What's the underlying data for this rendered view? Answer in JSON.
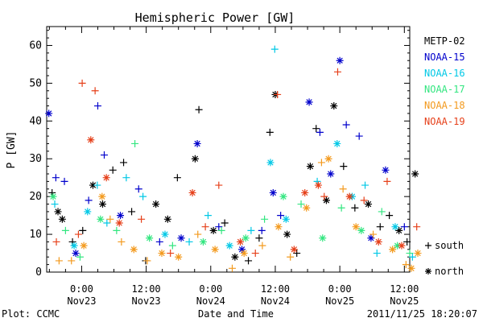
{
  "chart_data": {
    "type": "scatter",
    "title": "Hemispheric Power [GW]",
    "ylabel": "P [GW]",
    "xlabel": "Date and Time",
    "ylim": [
      0,
      65
    ],
    "yticks": [
      0,
      10,
      20,
      30,
      40,
      50,
      60
    ],
    "xlim": [
      -6.5,
      61
    ],
    "grid": false,
    "legend_placement": "right",
    "x_unit": "hours since 2011-11-23 00:00 UT",
    "xticks": [
      {
        "x": 0,
        "time": "0:00",
        "date": "Nov23"
      },
      {
        "x": 12,
        "time": "12:00",
        "date": "Nov23"
      },
      {
        "x": 24,
        "time": "0:00",
        "date": "Nov24"
      },
      {
        "x": 36,
        "time": "12:00",
        "date": "Nov24"
      },
      {
        "x": 48,
        "time": "0:00",
        "date": "Nov25"
      },
      {
        "x": 60,
        "time": "12:00",
        "date": "Nov25"
      }
    ],
    "marker_legend": [
      {
        "symbol": "+",
        "label": "south"
      },
      {
        "symbol": "*",
        "label": "north"
      }
    ],
    "series": [
      {
        "name": "METP-02",
        "color": "#000000",
        "points": [
          {
            "x": -5.5,
            "y": 21,
            "h": "south"
          },
          {
            "x": -4.4,
            "y": 16,
            "h": "north"
          },
          {
            "x": -3.6,
            "y": 14,
            "h": "north"
          },
          {
            "x": -1.7,
            "y": 8,
            "h": "south"
          },
          {
            "x": 0.2,
            "y": 11,
            "h": "south"
          },
          {
            "x": 2.1,
            "y": 23,
            "h": "north"
          },
          {
            "x": 3.9,
            "y": 18,
            "h": "north"
          },
          {
            "x": 5.8,
            "y": 27,
            "h": "south"
          },
          {
            "x": 7.8,
            "y": 29,
            "h": "south"
          },
          {
            "x": 9.3,
            "y": 16,
            "h": "south"
          },
          {
            "x": 11.9,
            "y": 3,
            "h": "south"
          },
          {
            "x": 13.8,
            "y": 18,
            "h": "north"
          },
          {
            "x": 16.0,
            "y": 14,
            "h": "north"
          },
          {
            "x": 17.8,
            "y": 25,
            "h": "south"
          },
          {
            "x": 21.1,
            "y": 30,
            "h": "north"
          },
          {
            "x": 21.8,
            "y": 43,
            "h": "south"
          },
          {
            "x": 24.5,
            "y": 11,
            "h": "north"
          },
          {
            "x": 26.6,
            "y": 13,
            "h": "south"
          },
          {
            "x": 28.5,
            "y": 4,
            "h": "north"
          },
          {
            "x": 31.0,
            "y": 3,
            "h": "south"
          },
          {
            "x": 33.0,
            "y": 9,
            "h": "south"
          },
          {
            "x": 35.0,
            "y": 37,
            "h": "south"
          },
          {
            "x": 36.0,
            "y": 47,
            "h": "north"
          },
          {
            "x": 38.2,
            "y": 10,
            "h": "north"
          },
          {
            "x": 40.0,
            "y": 5,
            "h": "south"
          },
          {
            "x": 42.5,
            "y": 28,
            "h": "north"
          },
          {
            "x": 43.6,
            "y": 38,
            "h": "south"
          },
          {
            "x": 45.5,
            "y": 19,
            "h": "north"
          },
          {
            "x": 46.9,
            "y": 44,
            "h": "north"
          },
          {
            "x": 48.7,
            "y": 28,
            "h": "south"
          },
          {
            "x": 50.8,
            "y": 17,
            "h": "south"
          },
          {
            "x": 53.3,
            "y": 18,
            "h": "north"
          },
          {
            "x": 55.5,
            "y": 12,
            "h": "south"
          },
          {
            "x": 57.2,
            "y": 15,
            "h": "south"
          },
          {
            "x": 59.0,
            "y": 11,
            "h": "north"
          },
          {
            "x": 60.5,
            "y": 8,
            "h": "south"
          },
          {
            "x": 62.0,
            "y": 26,
            "h": "north"
          }
        ]
      },
      {
        "name": "NOAA-15",
        "color": "#0000cc",
        "points": [
          {
            "x": -6.1,
            "y": 42,
            "h": "north"
          },
          {
            "x": -4.8,
            "y": 25,
            "h": "south"
          },
          {
            "x": -3.2,
            "y": 24,
            "h": "south"
          },
          {
            "x": -1.1,
            "y": 5,
            "h": "north"
          },
          {
            "x": 1.3,
            "y": 19,
            "h": "south"
          },
          {
            "x": 3.0,
            "y": 44,
            "h": "south"
          },
          {
            "x": 4.2,
            "y": 31,
            "h": "south"
          },
          {
            "x": 7.2,
            "y": 15,
            "h": "north"
          },
          {
            "x": 10.6,
            "y": 22,
            "h": "south"
          },
          {
            "x": 14.5,
            "y": 8,
            "h": "south"
          },
          {
            "x": 18.5,
            "y": 9,
            "h": "north"
          },
          {
            "x": 21.5,
            "y": 34,
            "h": "north"
          },
          {
            "x": 25.5,
            "y": 12,
            "h": "south"
          },
          {
            "x": 29.8,
            "y": 6,
            "h": "north"
          },
          {
            "x": 33.5,
            "y": 11,
            "h": "south"
          },
          {
            "x": 35.6,
            "y": 21,
            "h": "north"
          },
          {
            "x": 37.0,
            "y": 15,
            "h": "south"
          },
          {
            "x": 42.3,
            "y": 45,
            "h": "north"
          },
          {
            "x": 44.3,
            "y": 37,
            "h": "south"
          },
          {
            "x": 46.3,
            "y": 26,
            "h": "north"
          },
          {
            "x": 48.0,
            "y": 56,
            "h": "north"
          },
          {
            "x": 49.2,
            "y": 39,
            "h": "south"
          },
          {
            "x": 51.6,
            "y": 36,
            "h": "south"
          },
          {
            "x": 53.8,
            "y": 9,
            "h": "north"
          },
          {
            "x": 56.5,
            "y": 27,
            "h": "north"
          },
          {
            "x": 60.0,
            "y": 12,
            "h": "south"
          }
        ]
      },
      {
        "name": "NOAA-16",
        "color": "#00c8e6",
        "points": [
          {
            "x": -5.0,
            "y": 18,
            "h": "south"
          },
          {
            "x": -1.4,
            "y": 7,
            "h": "north"
          },
          {
            "x": 1.1,
            "y": 16,
            "h": "north"
          },
          {
            "x": 2.9,
            "y": 23,
            "h": "south"
          },
          {
            "x": 4.7,
            "y": 13,
            "h": "south"
          },
          {
            "x": 8.3,
            "y": 25,
            "h": "south"
          },
          {
            "x": 11.4,
            "y": 20,
            "h": "south"
          },
          {
            "x": 15.5,
            "y": 10,
            "h": "north"
          },
          {
            "x": 20.0,
            "y": 8,
            "h": "south"
          },
          {
            "x": 23.5,
            "y": 15,
            "h": "south"
          },
          {
            "x": 27.5,
            "y": 7,
            "h": "north"
          },
          {
            "x": 31.5,
            "y": 11,
            "h": "south"
          },
          {
            "x": 35.1,
            "y": 29,
            "h": "north"
          },
          {
            "x": 35.9,
            "y": 59,
            "h": "south"
          },
          {
            "x": 38.0,
            "y": 14,
            "h": "north"
          },
          {
            "x": 43.8,
            "y": 24,
            "h": "south"
          },
          {
            "x": 47.5,
            "y": 34,
            "h": "north"
          },
          {
            "x": 50.3,
            "y": 20,
            "h": "north"
          },
          {
            "x": 52.7,
            "y": 23,
            "h": "south"
          },
          {
            "x": 54.9,
            "y": 5,
            "h": "south"
          },
          {
            "x": 58.3,
            "y": 12,
            "h": "north"
          },
          {
            "x": 61.5,
            "y": 4,
            "h": "south"
          }
        ]
      },
      {
        "name": "NOAA-17",
        "color": "#33e680",
        "points": [
          {
            "x": -5.3,
            "y": 20,
            "h": "north"
          },
          {
            "x": -3.0,
            "y": 11,
            "h": "south"
          },
          {
            "x": -0.3,
            "y": 4,
            "h": "south"
          },
          {
            "x": 3.5,
            "y": 14,
            "h": "north"
          },
          {
            "x": 6.5,
            "y": 11,
            "h": "south"
          },
          {
            "x": 9.9,
            "y": 34,
            "h": "south"
          },
          {
            "x": 12.6,
            "y": 9,
            "h": "north"
          },
          {
            "x": 16.9,
            "y": 7,
            "h": "south"
          },
          {
            "x": 22.6,
            "y": 8,
            "h": "north"
          },
          {
            "x": 26.0,
            "y": 11,
            "h": "south"
          },
          {
            "x": 30.5,
            "y": 9,
            "h": "north"
          },
          {
            "x": 34.0,
            "y": 14,
            "h": "south"
          },
          {
            "x": 37.5,
            "y": 20,
            "h": "north"
          },
          {
            "x": 40.8,
            "y": 18,
            "h": "south"
          },
          {
            "x": 44.8,
            "y": 9,
            "h": "north"
          },
          {
            "x": 48.3,
            "y": 17,
            "h": "south"
          },
          {
            "x": 52.0,
            "y": 11,
            "h": "north"
          },
          {
            "x": 55.8,
            "y": 16,
            "h": "south"
          },
          {
            "x": 58.7,
            "y": 7,
            "h": "north"
          },
          {
            "x": 61.0,
            "y": 5,
            "h": "south"
          }
        ]
      },
      {
        "name": "NOAA-18",
        "color": "#f39a1e",
        "points": [
          {
            "x": -4.2,
            "y": 3,
            "h": "south"
          },
          {
            "x": -1.9,
            "y": 3,
            "h": "south"
          },
          {
            "x": 0.4,
            "y": 7,
            "h": "north"
          },
          {
            "x": 3.8,
            "y": 20,
            "h": "north"
          },
          {
            "x": 5.3,
            "y": 14,
            "h": "south"
          },
          {
            "x": 7.4,
            "y": 8,
            "h": "south"
          },
          {
            "x": 9.7,
            "y": 6,
            "h": "north"
          },
          {
            "x": 12.2,
            "y": 3,
            "h": "south"
          },
          {
            "x": 14.9,
            "y": 5,
            "h": "north"
          },
          {
            "x": 18.0,
            "y": 4,
            "h": "north"
          },
          {
            "x": 21.6,
            "y": 10,
            "h": "south"
          },
          {
            "x": 24.8,
            "y": 6,
            "h": "north"
          },
          {
            "x": 28.0,
            "y": 1,
            "h": "south"
          },
          {
            "x": 30.2,
            "y": 5,
            "h": "north"
          },
          {
            "x": 33.6,
            "y": 7,
            "h": "south"
          },
          {
            "x": 36.6,
            "y": 12,
            "h": "north"
          },
          {
            "x": 38.8,
            "y": 4,
            "h": "south"
          },
          {
            "x": 41.8,
            "y": 17,
            "h": "north"
          },
          {
            "x": 44.6,
            "y": 29,
            "h": "south"
          },
          {
            "x": 45.9,
            "y": 30,
            "h": "north"
          },
          {
            "x": 48.6,
            "y": 22,
            "h": "south"
          },
          {
            "x": 51.0,
            "y": 12,
            "h": "north"
          },
          {
            "x": 54.2,
            "y": 10,
            "h": "south"
          },
          {
            "x": 57.8,
            "y": 6,
            "h": "north"
          },
          {
            "x": 60.3,
            "y": 2,
            "h": "south"
          },
          {
            "x": 61.3,
            "y": 1,
            "h": "north"
          },
          {
            "x": 62.5,
            "y": 5,
            "h": "north"
          }
        ]
      },
      {
        "name": "NOAA-19",
        "color": "#e6401a",
        "points": [
          {
            "x": -4.7,
            "y": 8,
            "h": "south"
          },
          {
            "x": -0.6,
            "y": 10,
            "h": "south"
          },
          {
            "x": 0.1,
            "y": 50,
            "h": "south"
          },
          {
            "x": 1.7,
            "y": 35,
            "h": "north"
          },
          {
            "x": 2.5,
            "y": 48,
            "h": "south"
          },
          {
            "x": 4.6,
            "y": 25,
            "h": "north"
          },
          {
            "x": 7.0,
            "y": 13,
            "h": "north"
          },
          {
            "x": 11.1,
            "y": 14,
            "h": "south"
          },
          {
            "x": 16.5,
            "y": 5,
            "h": "south"
          },
          {
            "x": 20.6,
            "y": 21,
            "h": "north"
          },
          {
            "x": 23.0,
            "y": 12,
            "h": "south"
          },
          {
            "x": 25.5,
            "y": 23,
            "h": "south"
          },
          {
            "x": 29.5,
            "y": 8,
            "h": "north"
          },
          {
            "x": 32.3,
            "y": 5,
            "h": "south"
          },
          {
            "x": 36.4,
            "y": 47,
            "h": "south"
          },
          {
            "x": 39.5,
            "y": 6,
            "h": "north"
          },
          {
            "x": 41.5,
            "y": 21,
            "h": "north"
          },
          {
            "x": 44.0,
            "y": 23,
            "h": "north"
          },
          {
            "x": 45.1,
            "y": 20,
            "h": "south"
          },
          {
            "x": 47.6,
            "y": 53,
            "h": "south"
          },
          {
            "x": 49.8,
            "y": 20,
            "h": "north"
          },
          {
            "x": 52.5,
            "y": 19,
            "h": "south"
          },
          {
            "x": 55.2,
            "y": 8,
            "h": "north"
          },
          {
            "x": 56.8,
            "y": 24,
            "h": "south"
          },
          {
            "x": 59.5,
            "y": 7,
            "h": "north"
          },
          {
            "x": 62.3,
            "y": 12,
            "h": "south"
          }
        ]
      }
    ]
  },
  "footer": {
    "plot_credit": "Plot: CCMC",
    "timestamp": "2011/11/25 18:20:07"
  }
}
